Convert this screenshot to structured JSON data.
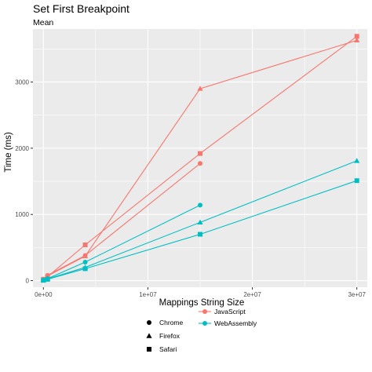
{
  "chart_data": {
    "type": "line",
    "title": "Set First Breakpoint",
    "subtitle": "Mean",
    "xlabel": "Mappings String Size",
    "ylabel": "Time (ms)",
    "xlim": [
      -1000000,
      31000000
    ],
    "ylim": [
      -100,
      3800
    ],
    "x_ticks": [
      {
        "value": 0,
        "label": "0e+00"
      },
      {
        "value": 10000000,
        "label": "1e+07"
      },
      {
        "value": 20000000,
        "label": "2e+07"
      },
      {
        "value": 30000000,
        "label": "3e+07"
      }
    ],
    "y_ticks": [
      {
        "value": 0,
        "label": "0"
      },
      {
        "value": 1000,
        "label": "1000"
      },
      {
        "value": 2000,
        "label": "2000"
      },
      {
        "value": 3000,
        "label": "3000"
      }
    ],
    "grid": true,
    "legend_position": "bottom",
    "shape_legend": [
      "Chrome",
      "Firefox",
      "Safari"
    ],
    "color_legend": [
      "JavaScript",
      "WebAssembly"
    ],
    "colors": {
      "JavaScript": "#F8766D",
      "WebAssembly": "#00BFC4",
      "panel": "#EBEBEB"
    },
    "series": [
      {
        "implementation": "JavaScript",
        "browser": "Chrome",
        "shape": "circle",
        "x": [
          0,
          400000,
          4000000,
          15000000
        ],
        "y": [
          15,
          80,
          380,
          1770
        ]
      },
      {
        "implementation": "JavaScript",
        "browser": "Firefox",
        "shape": "triangle",
        "x": [
          0,
          400000,
          4000000,
          15000000,
          30000000
        ],
        "y": [
          20,
          70,
          370,
          2900,
          3630
        ]
      },
      {
        "implementation": "JavaScript",
        "browser": "Safari",
        "shape": "square",
        "x": [
          0,
          400000,
          4000000,
          15000000,
          30000000
        ],
        "y": [
          20,
          60,
          540,
          1920,
          3690
        ]
      },
      {
        "implementation": "WebAssembly",
        "browser": "Chrome",
        "shape": "circle",
        "x": [
          0,
          400000,
          4000000,
          15000000
        ],
        "y": [
          5,
          30,
          280,
          1140
        ]
      },
      {
        "implementation": "WebAssembly",
        "browser": "Firefox",
        "shape": "triangle",
        "x": [
          0,
          400000,
          4000000,
          15000000,
          30000000
        ],
        "y": [
          5,
          25,
          200,
          880,
          1810
        ]
      },
      {
        "implementation": "WebAssembly",
        "browser": "Safari",
        "shape": "square",
        "x": [
          0,
          400000,
          4000000,
          15000000,
          30000000
        ],
        "y": [
          5,
          20,
          180,
          700,
          1510
        ]
      }
    ]
  }
}
